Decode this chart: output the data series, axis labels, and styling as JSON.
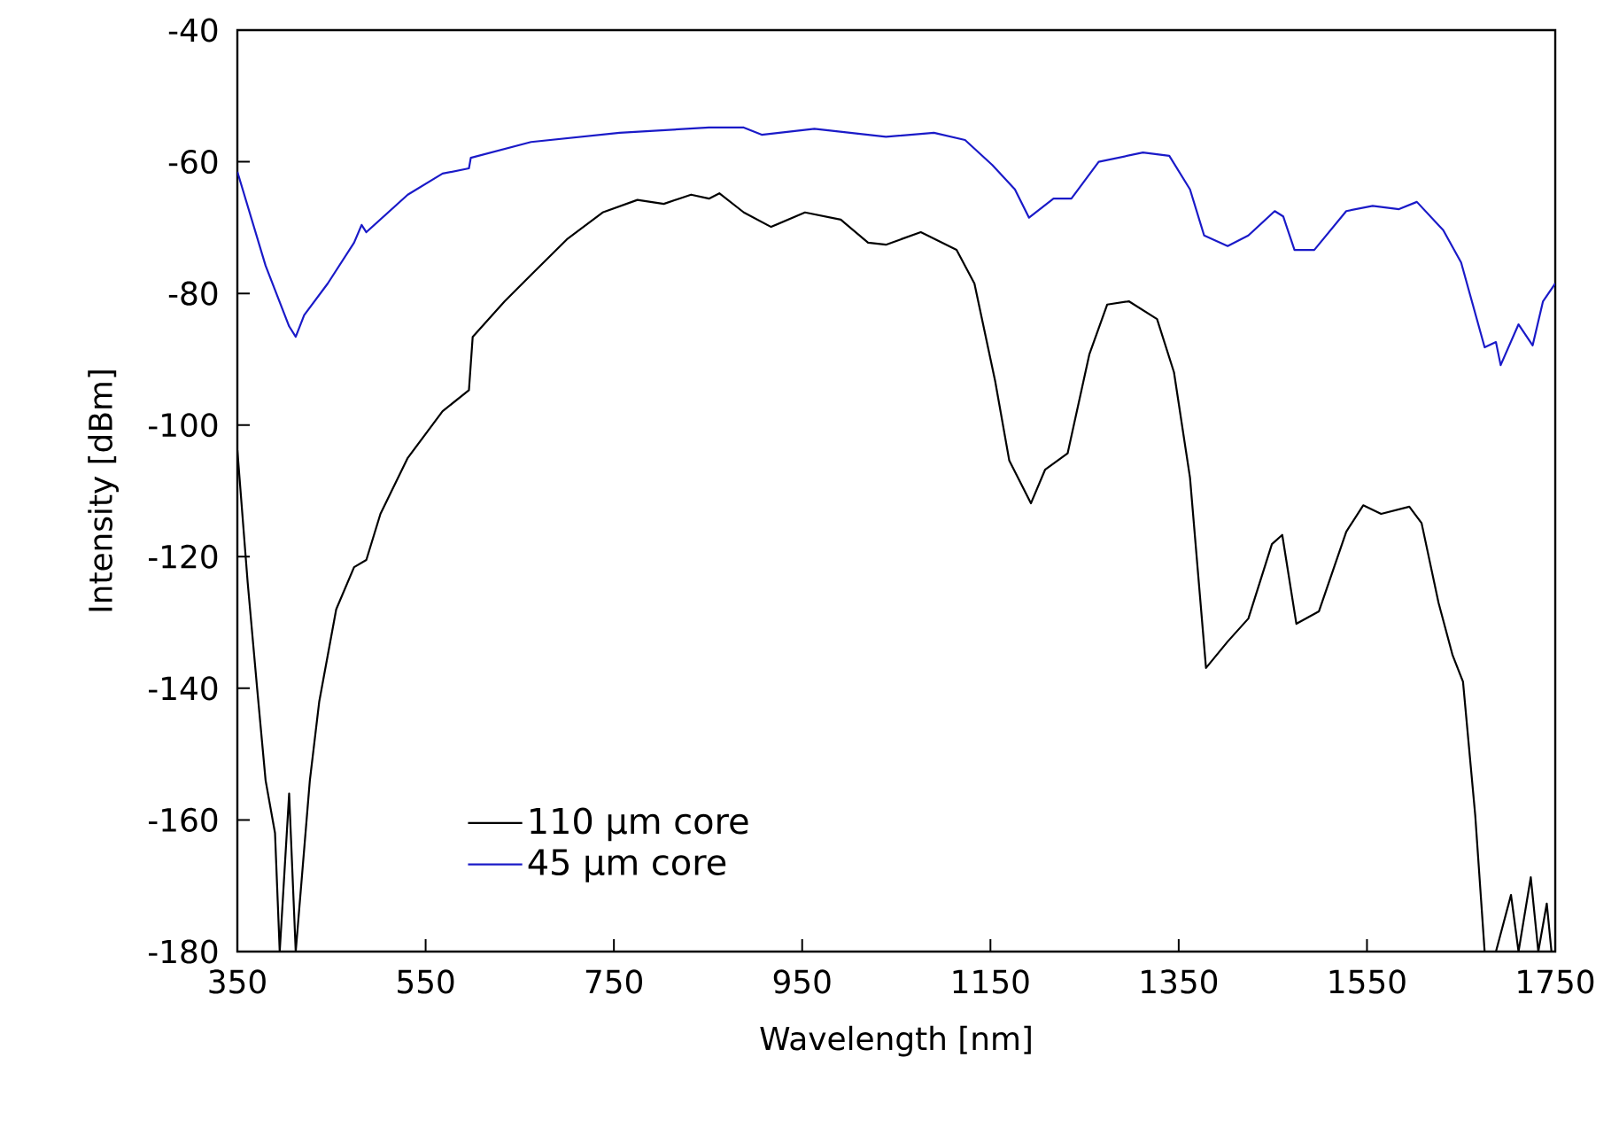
{
  "chart_data": {
    "type": "line",
    "xlabel": "Wavelength [nm]",
    "ylabel": "Intensity [dBm]",
    "xlim": [
      350,
      1750
    ],
    "ylim": [
      -180,
      -40
    ],
    "xticks": [
      350,
      550,
      750,
      950,
      1150,
      1350,
      1550,
      1750
    ],
    "yticks": [
      -180,
      -160,
      -140,
      -120,
      -100,
      -80,
      -60,
      -40
    ],
    "grid": false,
    "legend": "bottom left",
    "marker": "none",
    "line_style": "solid",
    "series": [
      {
        "name": "110 μm core",
        "color": "#000000",
        "x": [
          350,
          361,
          371,
          380,
          390,
          395,
          405,
          412,
          427,
          437,
          446,
          455,
          474,
          487,
          502,
          531,
          568,
          596,
          600,
          634,
          662,
          700,
          738,
          775,
          803,
          832,
          851,
          862,
          888,
          917,
          953,
          991,
          1020,
          1039,
          1076,
          1114,
          1133,
          1155,
          1170,
          1193,
          1208,
          1232,
          1255,
          1274,
          1297,
          1327,
          1345,
          1362,
          1379,
          1402,
          1424,
          1449,
          1460,
          1475,
          1499,
          1528,
          1546,
          1565,
          1595,
          1608,
          1626,
          1641,
          1652,
          1665,
          1675,
          1687,
          1703,
          1711,
          1724,
          1732,
          1741,
          1746
        ],
        "values": [
          -103.8,
          -124,
          -140,
          -154,
          -162,
          -180,
          -156,
          -180,
          -154,
          -142,
          -135,
          -128,
          -121.6,
          -120.5,
          -113.5,
          -105,
          -97.9,
          -94.7,
          -86.6,
          -81.2,
          -77.2,
          -71.8,
          -67.7,
          -65.8,
          -66.4,
          -65,
          -65.6,
          -64.8,
          -67.7,
          -69.9,
          -67.7,
          -68.8,
          -72.3,
          -72.6,
          -70.7,
          -73.4,
          -78.5,
          -93.3,
          -105.4,
          -111.9,
          -106.8,
          -104.3,
          -89.3,
          -81.7,
          -81.2,
          -83.9,
          -92,
          -108,
          -136.9,
          -132.9,
          -129.4,
          -118.1,
          -116.7,
          -130.2,
          -128.3,
          -116.2,
          -112.2,
          -113.5,
          -112.4,
          -114.9,
          -127,
          -135,
          -139,
          -159.3,
          -180,
          -180,
          -171.4,
          -180,
          -168.7,
          -180,
          -172.7,
          -180
        ]
      },
      {
        "name": "45 μm core",
        "color": "#1a1ac8",
        "x": [
          350,
          380,
          405,
          412,
          421,
          446,
          474,
          482,
          487,
          531,
          568,
          596,
          598,
          662,
          756,
          851,
          888,
          907,
          963,
          1020,
          1039,
          1090,
          1123,
          1152,
          1176,
          1191,
          1217,
          1236,
          1265,
          1312,
          1340,
          1362,
          1377,
          1402,
          1424,
          1452,
          1461,
          1473,
          1494,
          1528,
          1556,
          1584,
          1603,
          1631,
          1650,
          1675,
          1687,
          1692,
          1711,
          1726,
          1737,
          1750
        ],
        "values": [
          -61.5,
          -75.8,
          -85,
          -86.6,
          -83.3,
          -78.5,
          -72.3,
          -69.6,
          -70.7,
          -65,
          -61.8,
          -61,
          -59.4,
          -57,
          -55.6,
          -54.8,
          -54.8,
          -55.9,
          -55,
          -55.9,
          -56.2,
          -55.6,
          -56.7,
          -60.5,
          -64.2,
          -68.5,
          -65.6,
          -65.6,
          -60,
          -58.6,
          -59.1,
          -64.2,
          -71.2,
          -72.8,
          -71.2,
          -67.5,
          -68.3,
          -73.4,
          -73.4,
          -67.5,
          -66.7,
          -67.2,
          -66.1,
          -70.4,
          -75.3,
          -88.2,
          -87.4,
          -90.9,
          -84.7,
          -87.9,
          -81.2,
          -78.5
        ]
      }
    ]
  }
}
